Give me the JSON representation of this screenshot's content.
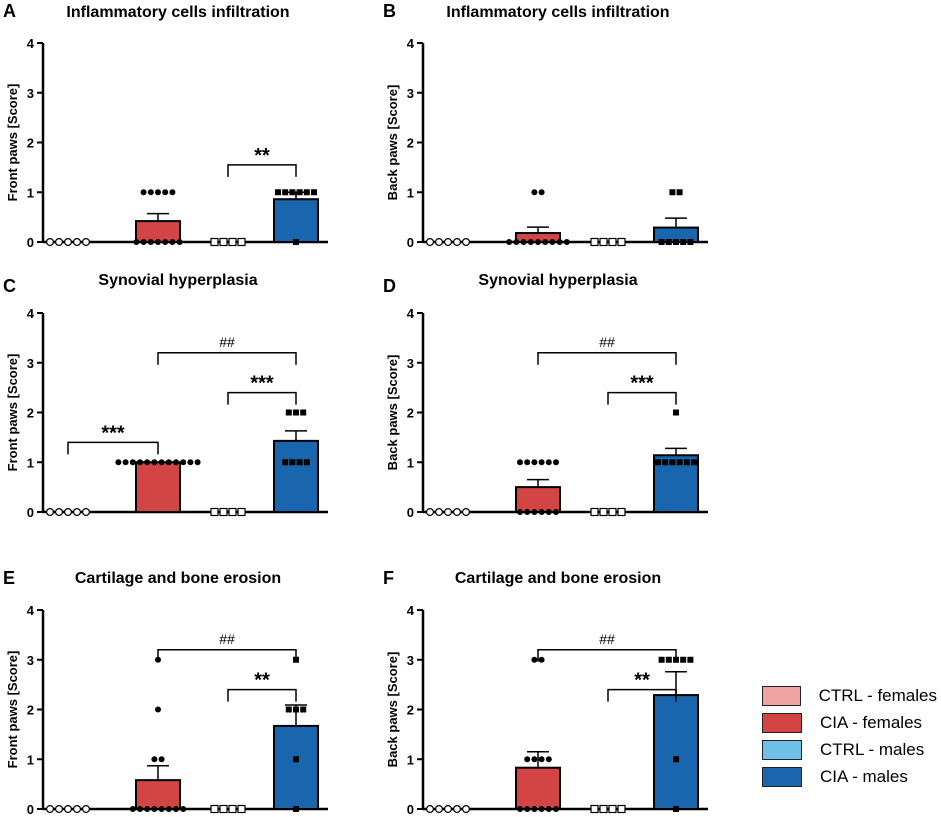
{
  "colors": {
    "ctrl_females": "#f0a3a3",
    "cia_females": "#d34545",
    "ctrl_males": "#6fc0e6",
    "cia_males": "#1a66ae"
  },
  "legend": [
    {
      "label": "CTRL - females",
      "color": "#f0a3a3"
    },
    {
      "label": "CIA - females",
      "color": "#d34545"
    },
    {
      "label": "CTRL - males",
      "color": "#6fc0e6"
    },
    {
      "label": "CIA - males",
      "color": "#1a66ae"
    }
  ],
  "chart_data": [
    {
      "panel": "A",
      "type": "bar",
      "title": "Inflammatory cells infiltration",
      "ylabel": "Front paws [Score]",
      "ylim": [
        0,
        4
      ],
      "yticks": [
        0,
        1,
        2,
        3,
        4
      ],
      "categories": [
        "CTRL - females",
        "CIA - females",
        "CTRL - males",
        "CIA - males"
      ],
      "values": [
        0,
        0.42,
        0,
        0.86
      ],
      "errors": [
        0,
        0.15,
        0,
        0.14
      ],
      "points": [
        [
          0,
          0,
          0,
          0,
          0
        ],
        [
          1,
          1,
          1,
          1,
          1,
          0,
          0,
          0,
          0,
          0,
          0,
          0
        ],
        [
          0,
          0,
          0,
          0
        ],
        [
          1,
          1,
          1,
          1,
          1,
          1,
          0
        ]
      ],
      "significance": [
        {
          "from": 2,
          "to": 3,
          "label": "**",
          "kind": "star"
        }
      ]
    },
    {
      "panel": "B",
      "type": "bar",
      "title": "Inflammatory cells infiltration",
      "ylabel": "Back paws [Score]",
      "ylim": [
        0,
        4
      ],
      "yticks": [
        0,
        1,
        2,
        3,
        4
      ],
      "categories": [
        "CTRL - females",
        "CIA - females",
        "CTRL - males",
        "CIA - males"
      ],
      "values": [
        0,
        0.18,
        0,
        0.29
      ],
      "errors": [
        0,
        0.12,
        0,
        0.19
      ],
      "points": [
        [
          0,
          0,
          0,
          0,
          0
        ],
        [
          1,
          1,
          0,
          0,
          0,
          0,
          0,
          0,
          0,
          0,
          0
        ],
        [
          0,
          0,
          0,
          0
        ],
        [
          1,
          1,
          0,
          0,
          0,
          0,
          0
        ]
      ],
      "significance": []
    },
    {
      "panel": "C",
      "type": "bar",
      "title": "Synovial hyperplasia",
      "ylabel": "Front paws [Score]",
      "ylim": [
        0,
        4
      ],
      "yticks": [
        0,
        1,
        2,
        3,
        4
      ],
      "categories": [
        "CTRL - females",
        "CIA - females",
        "CTRL - males",
        "CIA - males"
      ],
      "values": [
        0,
        1.0,
        0,
        1.43
      ],
      "errors": [
        0,
        0,
        0,
        0.2
      ],
      "points": [
        [
          0,
          0,
          0,
          0,
          0
        ],
        [
          1,
          1,
          1,
          1,
          1,
          1,
          1,
          1,
          1,
          1,
          1,
          1
        ],
        [
          0,
          0,
          0,
          0
        ],
        [
          2,
          2,
          2,
          1,
          1,
          1,
          1
        ]
      ],
      "significance": [
        {
          "from": 0,
          "to": 1,
          "label": "***",
          "kind": "star"
        },
        {
          "from": 2,
          "to": 3,
          "label": "***",
          "kind": "star"
        },
        {
          "from": 1,
          "to": 3,
          "label": "##",
          "kind": "hash"
        }
      ]
    },
    {
      "panel": "D",
      "type": "bar",
      "title": "Synovial hyperplasia",
      "ylabel": "Back paws [Score]",
      "ylim": [
        0,
        4
      ],
      "yticks": [
        0,
        1,
        2,
        3,
        4
      ],
      "categories": [
        "CTRL - females",
        "CIA - females",
        "CTRL - males",
        "CIA - males"
      ],
      "values": [
        0,
        0.5,
        0,
        1.14
      ],
      "errors": [
        0,
        0.15,
        0,
        0.14
      ],
      "points": [
        [
          0,
          0,
          0,
          0,
          0
        ],
        [
          1,
          1,
          1,
          1,
          1,
          1,
          0,
          0,
          0,
          0,
          0,
          0
        ],
        [
          0,
          0,
          0,
          0
        ],
        [
          2,
          1,
          1,
          1,
          1,
          1,
          1
        ]
      ],
      "significance": [
        {
          "from": 2,
          "to": 3,
          "label": "***",
          "kind": "star"
        },
        {
          "from": 1,
          "to": 3,
          "label": "##",
          "kind": "hash"
        }
      ]
    },
    {
      "panel": "E",
      "type": "bar",
      "title": "Cartilage and bone erosion",
      "ylabel": "Front paws [Score]",
      "ylim": [
        0,
        4
      ],
      "yticks": [
        0,
        1,
        2,
        3,
        4
      ],
      "categories": [
        "CTRL - females",
        "CIA - females",
        "CTRL - males",
        "CIA - males"
      ],
      "values": [
        0,
        0.58,
        0,
        1.67
      ],
      "errors": [
        0,
        0.29,
        0,
        0.42
      ],
      "points": [
        [
          0,
          0,
          0,
          0,
          0
        ],
        [
          3,
          2,
          1,
          1,
          0,
          0,
          0,
          0,
          0,
          0,
          0,
          0
        ],
        [
          0,
          0,
          0,
          0
        ],
        [
          3,
          2,
          2,
          2,
          1,
          0
        ]
      ],
      "significance": [
        {
          "from": 2,
          "to": 3,
          "label": "**",
          "kind": "star"
        },
        {
          "from": 1,
          "to": 3,
          "label": "##",
          "kind": "hash"
        }
      ]
    },
    {
      "panel": "F",
      "type": "bar",
      "title": "Cartilage and bone erosion",
      "ylabel": "Back paws [Score]",
      "ylim": [
        0,
        4
      ],
      "yticks": [
        0,
        1,
        2,
        3,
        4
      ],
      "categories": [
        "CTRL - females",
        "CIA - females",
        "CTRL - males",
        "CIA - males"
      ],
      "values": [
        0,
        0.83,
        0,
        2.29
      ],
      "errors": [
        0,
        0.32,
        0,
        0.47
      ],
      "points": [
        [
          0,
          0,
          0,
          0,
          0
        ],
        [
          3,
          3,
          1,
          1,
          1,
          1,
          0,
          0,
          0,
          0,
          0,
          0
        ],
        [
          0,
          0,
          0,
          0
        ],
        [
          3,
          3,
          3,
          3,
          3,
          1,
          0
        ]
      ],
      "significance": [
        {
          "from": 2,
          "to": 3,
          "label": "**",
          "kind": "star"
        },
        {
          "from": 1,
          "to": 3,
          "label": "##",
          "kind": "hash"
        }
      ]
    }
  ]
}
